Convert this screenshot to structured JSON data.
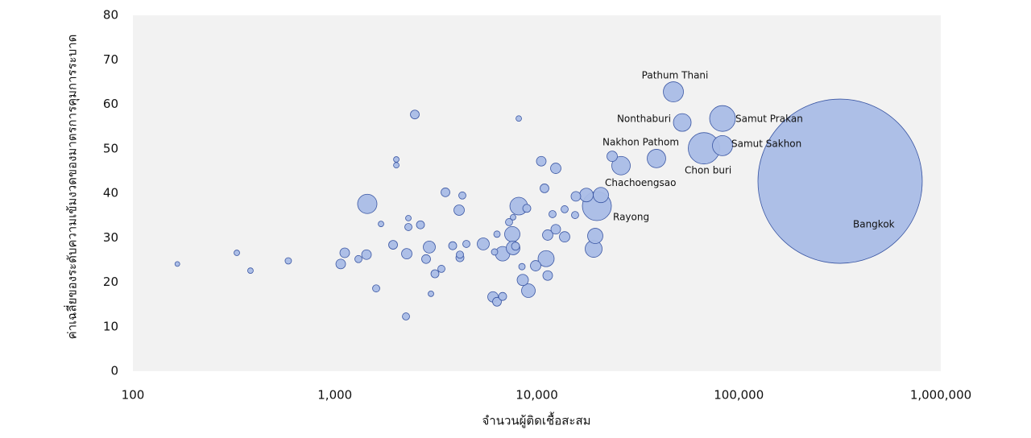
{
  "chart_data": {
    "type": "bubble",
    "x_label": "จำนวนผู้ติดเชื้อสะสม",
    "y_label": "ค่าเฉลี่ยของระดับความเข้มงวดของมาตรการคุมการระบาด",
    "x_scale": "log",
    "xlim": [
      100,
      1000000
    ],
    "xticks": [
      100,
      {
        "value": 1000,
        "label": "1,000"
      },
      {
        "value": 10000,
        "label": "10,000"
      },
      {
        "value": 100000,
        "label": "100,000"
      },
      {
        "value": 1000000,
        "label": "1,000,000"
      }
    ],
    "ylim": [
      0,
      80
    ],
    "yticks": [
      0,
      10,
      20,
      30,
      40,
      50,
      60,
      70,
      80
    ],
    "grid": false,
    "color": "#a9bce6",
    "edge_color": "#3a56a3",
    "background": "#f2f2f2",
    "x": [
      166,
      327,
      382,
      588,
      1069,
      1119,
      1308,
      1434,
      1447,
      1601,
      1692,
      1942,
      2015,
      2015,
      2249,
      2270,
      2312,
      2312,
      2488,
      2653,
      2829,
      2935,
      2990,
      3130,
      3369,
      3527,
      3831,
      4123,
      4161,
      4161,
      4277,
      4478,
      5429,
      6063,
      6175,
      6348,
      6348,
      6769,
      6769,
      7285,
      7557,
      7627,
      7627,
      7843,
      8137,
      8137,
      8440,
      8518,
      8917,
      9082,
      9863,
      10517,
      10911,
      11114,
      11319,
      11319,
      11958,
      12408,
      12408,
      13727,
      13727,
      15463,
      15606,
      17592,
      19108,
      19461,
      19823,
      20755,
      23600,
      26111,
      39100,
      47430,
      52480,
      67210,
      83040,
      83040,
      317300
    ],
    "y": [
      24.1,
      26.6,
      22.6,
      24.8,
      24.1,
      26.6,
      25.2,
      26.2,
      37.6,
      18.6,
      33.1,
      28.4,
      47.6,
      46.3,
      12.3,
      26.4,
      34.4,
      32.4,
      57.7,
      32.9,
      25.2,
      27.9,
      17.4,
      21.9,
      23.0,
      40.2,
      28.2,
      36.2,
      25.5,
      26.2,
      39.5,
      28.6,
      28.6,
      16.7,
      26.8,
      15.6,
      30.8,
      16.8,
      26.4,
      33.5,
      30.8,
      34.6,
      27.7,
      28.1,
      56.8,
      37.1,
      23.5,
      20.5,
      36.6,
      18.1,
      23.7,
      47.2,
      41.1,
      25.3,
      21.5,
      30.6,
      35.3,
      45.6,
      31.9,
      30.2,
      36.4,
      35.1,
      39.3,
      39.6,
      27.5,
      30.4,
      37.1,
      39.6,
      48.3,
      46.2,
      47.8,
      62.8,
      55.9,
      50.1,
      56.8,
      50.7,
      42.7
    ],
    "sizes": [
      9,
      12,
      12,
      16,
      36,
      36,
      20,
      36,
      144,
      20,
      12,
      30,
      12,
      12,
      20,
      42,
      12,
      20,
      30,
      25,
      30,
      56,
      12,
      25,
      20,
      30,
      25,
      42,
      25,
      20,
      20,
      20,
      56,
      42,
      16,
      30,
      16,
      25,
      81,
      20,
      90,
      12,
      72,
      25,
      12,
      121,
      16,
      49,
      25,
      72,
      42,
      36,
      30,
      100,
      36,
      42,
      20,
      42,
      36,
      42,
      20,
      20,
      36,
      72,
      110,
      90,
      324,
      90,
      42,
      132,
      132,
      156,
      121,
      380,
      256,
      156,
      10404
    ],
    "point_labels": [
      null,
      null,
      null,
      null,
      null,
      null,
      null,
      null,
      null,
      null,
      null,
      null,
      null,
      null,
      null,
      null,
      null,
      null,
      null,
      null,
      null,
      null,
      null,
      null,
      null,
      null,
      null,
      null,
      null,
      null,
      null,
      null,
      null,
      null,
      null,
      null,
      null,
      null,
      null,
      null,
      null,
      null,
      null,
      null,
      null,
      null,
      null,
      null,
      null,
      null,
      null,
      null,
      null,
      null,
      null,
      null,
      null,
      null,
      null,
      null,
      null,
      null,
      null,
      null,
      null,
      null,
      "Rayong",
      null,
      null,
      "Chachoengsao",
      "Nakhon Pathom",
      "Pathum Thani",
      "Nonthaburi",
      "Chon buri",
      "Samut Prakan",
      "Samut Sakhon",
      "Bangkok"
    ]
  }
}
